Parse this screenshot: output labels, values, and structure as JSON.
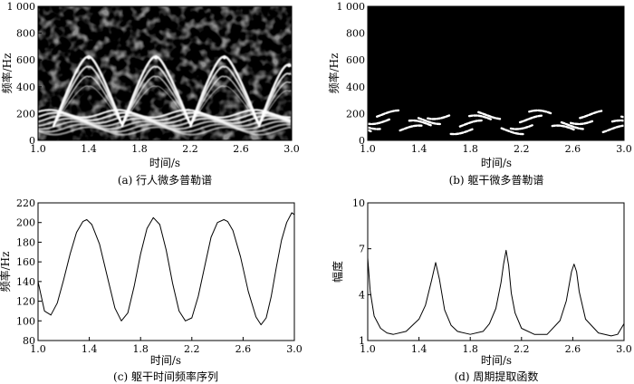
{
  "chart_data": [
    {
      "panel": "a",
      "type": "heatmap",
      "caption": "(a) 行人微多普勒谱",
      "xlabel": "时间/s",
      "ylabel": "频率/Hz",
      "xlim": [
        1.0,
        3.0
      ],
      "ylim": [
        0,
        1000
      ],
      "xticks": [
        "1.0",
        "1.4",
        "1.8",
        "2.2",
        "2.6",
        "3.0"
      ],
      "yticks": [
        "0",
        "200",
        "400",
        "600",
        "800",
        "1 000"
      ],
      "colormap": "grayscale",
      "noise_floor": "present",
      "torso_band_hz": [
        60,
        210
      ],
      "limb_peaks": [
        {
          "t": 1.4,
          "f": 620
        },
        {
          "t": 1.93,
          "f": 620
        },
        {
          "t": 2.47,
          "f": 620
        },
        {
          "t": 2.98,
          "f": 560
        }
      ],
      "limb_troughs": [
        {
          "t": 1.12,
          "f": 100
        },
        {
          "t": 1.66,
          "f": 100
        },
        {
          "t": 2.2,
          "f": 100
        },
        {
          "t": 2.74,
          "f": 100
        }
      ]
    },
    {
      "panel": "b",
      "type": "heatmap",
      "caption": "(b) 躯干微多普勒谱",
      "xlabel": "时间/s",
      "ylabel": "频率/Hz",
      "xlim": [
        1.0,
        3.0
      ],
      "ylim": [
        0,
        1000
      ],
      "xticks": [
        "1.0",
        "1.4",
        "1.8",
        "2.2",
        "2.6",
        "3.0"
      ],
      "yticks": [
        "0",
        "200",
        "400",
        "600",
        "800",
        "1 000"
      ],
      "colormap": "grayscale",
      "noise_floor": "absent",
      "torso_band_hz": [
        60,
        210
      ]
    },
    {
      "panel": "c",
      "type": "line",
      "caption": "(c) 躯干时间频率序列",
      "xlabel": "时间/s",
      "ylabel": "频率/Hz",
      "xlim": [
        1.0,
        3.0
      ],
      "ylim": [
        80,
        220
      ],
      "xticks": [
        "1.0",
        "1.4",
        "1.8",
        "2.2",
        "2.6",
        "3.0"
      ],
      "yticks": [
        "80",
        "100",
        "120",
        "140",
        "160",
        "180",
        "200",
        "220"
      ],
      "series": [
        {
          "x": [
            1.0,
            1.05,
            1.1,
            1.15,
            1.2,
            1.25,
            1.3,
            1.35,
            1.38,
            1.42,
            1.48,
            1.55,
            1.6,
            1.65,
            1.7,
            1.75,
            1.8,
            1.85,
            1.9,
            1.95,
            2.0,
            2.05,
            2.1,
            2.15,
            2.2,
            2.25,
            2.3,
            2.35,
            2.4,
            2.45,
            2.48,
            2.52,
            2.58,
            2.64,
            2.7,
            2.74,
            2.78,
            2.82,
            2.86,
            2.9,
            2.94,
            2.98,
            3.0
          ],
          "y": [
            140,
            110,
            106,
            118,
            142,
            168,
            190,
            201,
            203,
            198,
            178,
            140,
            113,
            100,
            108,
            135,
            168,
            194,
            205,
            198,
            172,
            138,
            110,
            100,
            103,
            125,
            155,
            185,
            200,
            203,
            201,
            192,
            165,
            130,
            104,
            96,
            103,
            125,
            155,
            182,
            200,
            210,
            208
          ]
        }
      ]
    },
    {
      "panel": "d",
      "type": "line",
      "caption": "(d) 周期提取函数",
      "xlabel": "时间/s",
      "ylabel": "幅度",
      "xlim": [
        1.0,
        3.0
      ],
      "ylim": [
        1,
        10
      ],
      "xticks": [
        "1.0",
        "1.4",
        "1.8",
        "2.2",
        "2.6",
        "3.0"
      ],
      "yticks": [
        "1",
        "4",
        "7",
        "10"
      ],
      "series": [
        {
          "x": [
            1.0,
            1.02,
            1.05,
            1.1,
            1.15,
            1.2,
            1.3,
            1.4,
            1.45,
            1.5,
            1.53,
            1.56,
            1.6,
            1.65,
            1.7,
            1.8,
            1.9,
            1.95,
            2.0,
            2.04,
            2.06,
            2.08,
            2.1,
            2.12,
            2.15,
            2.2,
            2.3,
            2.4,
            2.5,
            2.55,
            2.59,
            2.61,
            2.63,
            2.65,
            2.7,
            2.8,
            2.9,
            2.95,
            3.0
          ],
          "y": [
            6.4,
            4.2,
            2.6,
            1.8,
            1.5,
            1.4,
            1.6,
            2.4,
            3.3,
            5.0,
            6.1,
            5.0,
            3.0,
            2.0,
            1.6,
            1.4,
            1.6,
            2.1,
            3.1,
            4.8,
            6.0,
            6.9,
            5.9,
            4.1,
            2.8,
            1.8,
            1.4,
            1.4,
            2.3,
            3.6,
            5.5,
            6.0,
            5.5,
            4.2,
            2.4,
            1.5,
            1.3,
            1.4,
            2.1
          ]
        }
      ]
    }
  ]
}
